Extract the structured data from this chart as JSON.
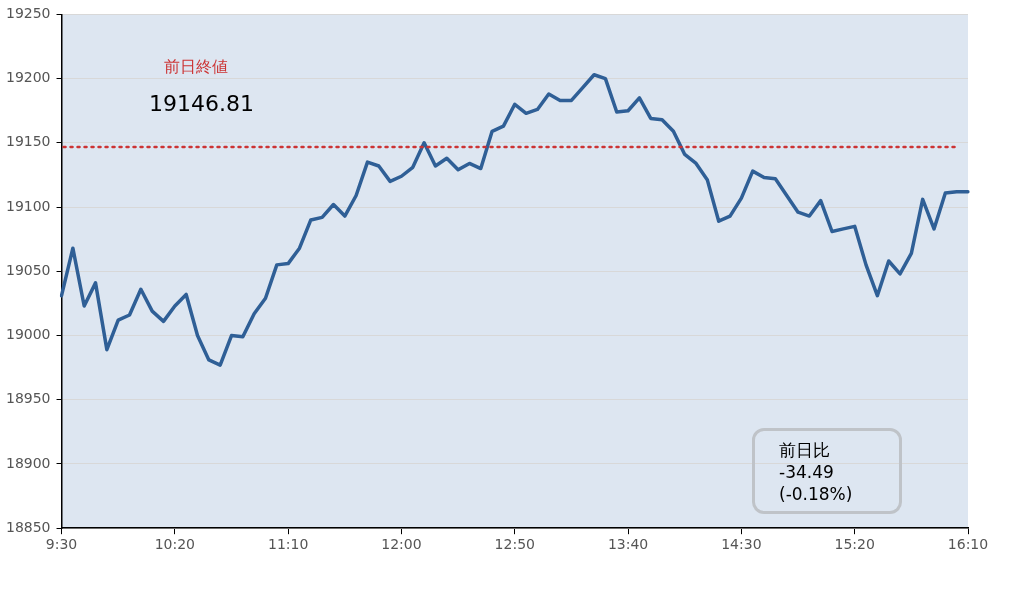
{
  "chart_data": {
    "type": "line",
    "categories": [
      "9:30",
      null,
      null,
      null,
      null,
      null,
      null,
      null,
      null,
      null,
      "10:20",
      null,
      null,
      null,
      null,
      null,
      null,
      null,
      null,
      null,
      "11:10",
      null,
      null,
      null,
      null,
      null,
      null,
      null,
      null,
      null,
      "12:00",
      null,
      null,
      null,
      null,
      null,
      null,
      null,
      null,
      null,
      "12:50",
      null,
      null,
      null,
      null,
      null,
      null,
      null,
      null,
      null,
      "13:40",
      null,
      null,
      null,
      null,
      null,
      null,
      null,
      null,
      null,
      "14:30",
      null,
      null,
      null,
      null,
      null,
      null,
      null,
      null,
      null,
      "15:20",
      null,
      null,
      null,
      null,
      null,
      null,
      null,
      null,
      null,
      "16:10"
    ],
    "series": [
      {
        "color": "#2f5f96",
        "values": [
          19031,
          19068,
          19023,
          19041,
          18989,
          19012,
          19016,
          19036,
          19019,
          19011,
          19023,
          19032,
          19000,
          18981,
          18977,
          19000,
          18999,
          19017,
          19029,
          19055,
          19056,
          19068,
          19090,
          19092,
          19102,
          19093,
          19109,
          19135,
          19132,
          19120,
          19124,
          19131,
          19150,
          19132,
          19138,
          19129,
          19134,
          19130,
          19159,
          19163,
          19180,
          19173,
          19176,
          19188,
          19183,
          19183,
          19193,
          19203,
          19200,
          19174,
          19175,
          19185,
          19169,
          19168,
          19159,
          19141,
          19134,
          19121,
          19089,
          19093,
          19107,
          19128,
          19123,
          19122,
          19109,
          19096,
          19093,
          19105,
          19081,
          19083,
          19085,
          19055,
          19031,
          19058,
          19048,
          19064,
          19106,
          19083,
          19111,
          19112,
          19112
        ]
      }
    ],
    "ylim": [
      18850,
      19250
    ],
    "yticks": [
      18850,
      18900,
      18950,
      19000,
      19050,
      19100,
      19150,
      19200,
      19250
    ],
    "grid": "y",
    "legend": false,
    "marker": "none",
    "line_style": "solid",
    "ref_lines": [
      {
        "axis": "y",
        "value": 19146.81,
        "label": "前日終値",
        "color": "#cc3333",
        "line_style": "dotted"
      }
    ],
    "annotations": [
      "19146.81",
      "前日比\n-34.49\n(-0.18%)"
    ]
  }
}
